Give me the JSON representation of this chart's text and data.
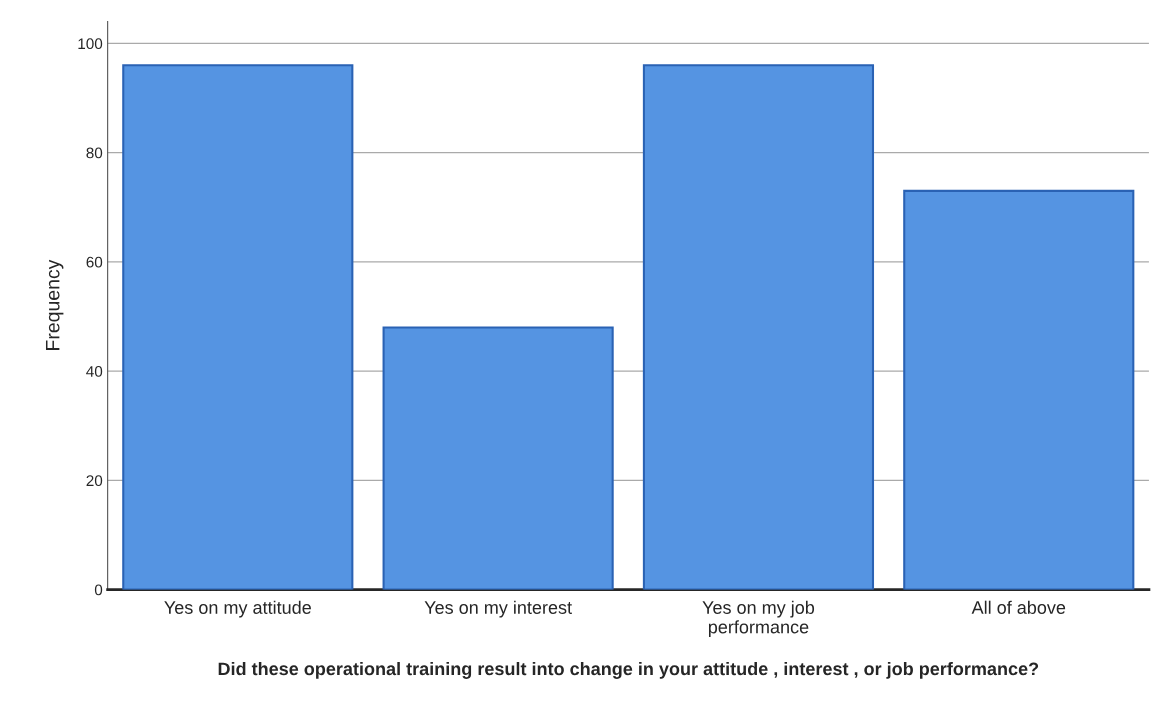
{
  "chart_data": {
    "type": "bar",
    "xlabel": "Did these operational training result into change in your attitude , interest , or job performance?",
    "ylabel": "Frequency",
    "categories": [
      "Yes on my attitude",
      "Yes on my interest",
      "Yes on my job\nperformance",
      "All of above"
    ],
    "values": [
      96,
      48,
      96,
      73
    ],
    "color": "#5594e2",
    "ylim": [
      0,
      104
    ],
    "yticks": [
      0,
      20,
      40,
      60,
      80,
      100
    ],
    "grid": "y"
  }
}
